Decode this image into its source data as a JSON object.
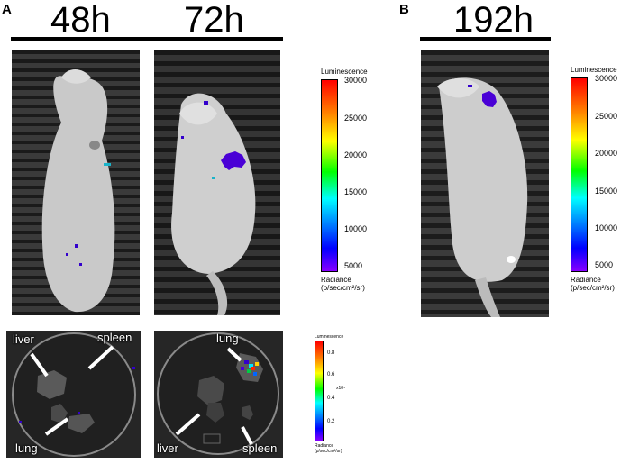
{
  "panels": {
    "a": {
      "letter": "A",
      "timepoints": [
        "48h",
        "72h"
      ],
      "ex_vivo": {
        "left_labels": {
          "liver": "liver",
          "spleen": "spleen",
          "lung": "lung"
        },
        "right_labels": {
          "lung": "lung",
          "liver": "liver",
          "spleen": "spleen"
        }
      }
    },
    "b": {
      "letter": "B",
      "timepoints": [
        "192h"
      ]
    }
  },
  "scale_in_vivo": {
    "title": "Luminescence",
    "ticks": [
      "30000",
      "25000",
      "20000",
      "15000",
      "10000",
      "5000"
    ],
    "unit_line1": "Radiance",
    "unit_line2": "(p/sec/cm²/sr)"
  },
  "scale_in_vivo_b": {
    "title": "Luminescence",
    "ticks": [
      "30000",
      "25000",
      "20000",
      "15000",
      "10000",
      "5000"
    ],
    "unit_line1": "Radiance",
    "unit_line2": "(p/sec/cm²/sr)"
  },
  "scale_ex_vivo": {
    "title": "Luminescence",
    "ticks": [
      "0.8",
      "0.6",
      "0.4",
      "0.2"
    ],
    "exponent": "x10⁵",
    "unit_line1": "Radiance",
    "unit_line2": "(p/sec/cm²/sr)"
  },
  "colors": {
    "scale_top": "#ff0000",
    "scale_mid": "#00ff00",
    "scale_low": "#0000ff",
    "scale_bottom": "#8800ff",
    "signal": "#3300cc"
  }
}
